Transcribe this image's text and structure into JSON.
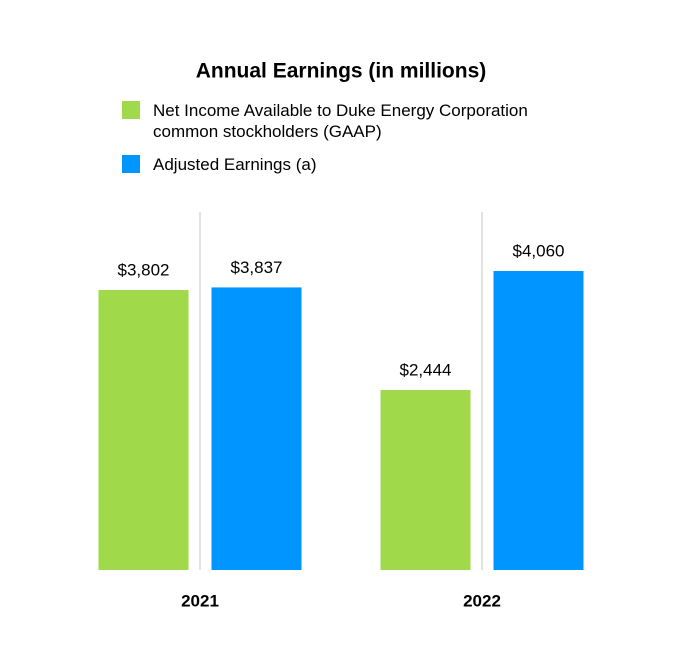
{
  "chart_data": {
    "type": "bar",
    "title": "Annual Earnings (in millions)",
    "categories": [
      "2021",
      "2022"
    ],
    "series": [
      {
        "name": "Net Income Available to Duke Energy Corporation common stockholders (GAAP)",
        "color": "#a0d94a",
        "values": [
          3802,
          2444
        ],
        "value_labels": [
          "$3,802",
          "$2,444"
        ]
      },
      {
        "name": "Adjusted Earnings (a)",
        "color": "#0095ff",
        "values": [
          3837,
          4060
        ],
        "value_labels": [
          "$3,837",
          "$4,060"
        ]
      }
    ],
    "legend": "top"
  }
}
